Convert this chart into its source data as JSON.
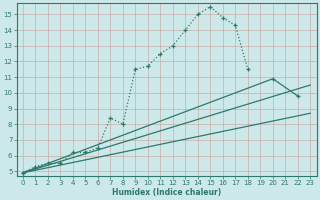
{
  "xlabel": "Humidex (Indice chaleur)",
  "bg_color": "#cce8e8",
  "line_color": "#2d7a6a",
  "xlim": [
    -0.5,
    23.5
  ],
  "ylim": [
    4.7,
    15.7
  ],
  "yticks": [
    5,
    6,
    7,
    8,
    9,
    10,
    11,
    12,
    13,
    14,
    15
  ],
  "xticks": [
    0,
    1,
    2,
    3,
    4,
    5,
    6,
    7,
    8,
    9,
    10,
    11,
    12,
    13,
    14,
    15,
    16,
    17,
    18,
    19,
    20,
    21,
    22,
    23
  ],
  "curve_x": [
    0,
    1,
    2,
    3,
    4,
    5,
    6,
    7,
    8,
    9,
    10,
    11,
    12,
    13,
    14,
    15,
    16,
    17,
    18
  ],
  "curve_y": [
    4.9,
    5.3,
    5.5,
    5.5,
    6.2,
    6.2,
    6.5,
    8.4,
    8.0,
    11.5,
    11.7,
    12.5,
    13.0,
    14.0,
    15.0,
    15.5,
    14.8,
    14.3,
    11.5
  ],
  "line1_x": [
    0,
    23
  ],
  "line1_y": [
    4.9,
    8.7
  ],
  "line2_x": [
    0,
    23
  ],
  "line2_y": [
    4.9,
    10.5
  ],
  "line3_x": [
    0,
    20,
    22
  ],
  "line3_y": [
    4.9,
    10.9,
    9.8
  ],
  "marker": "+"
}
